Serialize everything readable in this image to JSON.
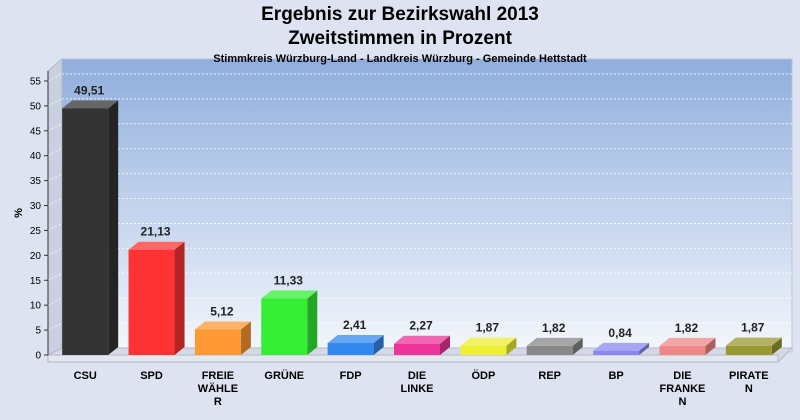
{
  "header": {
    "title": "Ergebnis zur Bezirkswahl 2013",
    "subtitle": "Zweitstimmen in Prozent",
    "caption": "Stimmkreis Würzburg-Land - Landkreis Würzburg - Gemeinde Hettstadt"
  },
  "chart_data": {
    "type": "bar",
    "title": "Ergebnis zur Bezirkswahl 2013",
    "subtitle": "Zweitstimmen in Prozent",
    "ylabel": "%",
    "xlabel": "",
    "ylim": [
      0,
      57
    ],
    "yticks": [
      0,
      5,
      10,
      15,
      20,
      25,
      30,
      35,
      40,
      45,
      50,
      55
    ],
    "grid": true,
    "legend": "none",
    "categories": [
      [
        "CSU"
      ],
      [
        "SPD"
      ],
      [
        "FREIE",
        "WÄHLE",
        "R"
      ],
      [
        "GRÜNE"
      ],
      [
        "FDP"
      ],
      [
        "DIE",
        "LINKE"
      ],
      [
        "ÖDP"
      ],
      [
        "REP"
      ],
      [
        "BP"
      ],
      [
        "DIE",
        "FRANKE",
        "N"
      ],
      [
        "PIRATE",
        "N"
      ]
    ],
    "values": [
      49.51,
      21.13,
      5.12,
      11.33,
      2.41,
      2.27,
      1.87,
      1.82,
      0.84,
      1.82,
      1.87
    ],
    "value_labels": [
      "49,51",
      "21,13",
      "5,12",
      "11,33",
      "2,41",
      "2,27",
      "1,87",
      "1,82",
      "0,84",
      "1,82",
      "1,87"
    ],
    "colors": [
      "#333333",
      "#ff3333",
      "#ff9933",
      "#33ee33",
      "#3388ee",
      "#ee3399",
      "#eeee33",
      "#888888",
      "#8888ee",
      "#ee8888",
      "#999933"
    ]
  }
}
